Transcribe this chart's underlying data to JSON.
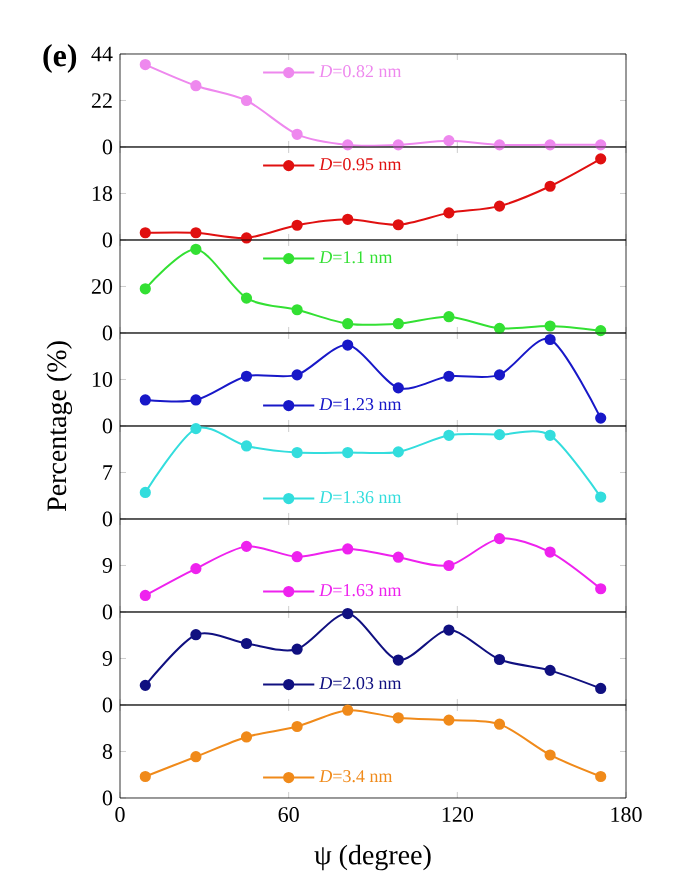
{
  "chart_data": [
    {
      "type": "line",
      "x": [
        9,
        27,
        45,
        63,
        81,
        99,
        117,
        135,
        153,
        171
      ],
      "xlim": [
        0,
        180
      ],
      "xticks": [
        0,
        60,
        120,
        180
      ],
      "ylim": [
        0,
        44
      ],
      "yticks": [
        0,
        22,
        44
      ],
      "tick_labels": "y",
      "marker": "circle",
      "line_style": "solid",
      "legend": "top",
      "grid": false,
      "annotations": [
        "(e)"
      ],
      "series": [
        {
          "name": "*D*=0.82 nm",
          "color": "#ee88ee",
          "values": [
            39,
            29,
            22,
            6,
            1,
            1,
            3,
            1,
            1,
            1
          ]
        }
      ]
    },
    {
      "type": "line",
      "x": [
        9,
        27,
        45,
        63,
        81,
        99,
        117,
        135,
        153,
        171
      ],
      "xlim": [
        0,
        180
      ],
      "xticks": [
        0,
        60,
        120,
        180
      ],
      "ylim": [
        0,
        36
      ],
      "yticks": [
        0,
        18
      ],
      "tick_labels": "y",
      "marker": "circle",
      "line_style": "solid",
      "legend": "top",
      "grid": false,
      "series": [
        {
          "name": "*D*=0.95 nm",
          "color": "#e01010",
          "values": [
            2.8,
            2.8,
            0.8,
            5.7,
            8,
            5.9,
            10.5,
            13.1,
            20.8,
            31.4
          ]
        }
      ]
    },
    {
      "type": "line",
      "x": [
        9,
        27,
        45,
        63,
        81,
        99,
        117,
        135,
        153,
        171
      ],
      "xlim": [
        0,
        180
      ],
      "xticks": [
        0,
        60,
        120,
        180
      ],
      "ylim": [
        0,
        40
      ],
      "yticks": [
        0,
        20
      ],
      "tick_labels": "y",
      "marker": "circle",
      "line_style": "solid",
      "legend": "top",
      "grid": false,
      "series": [
        {
          "name": "*D*=1.1 nm",
          "color": "#33e033",
          "values": [
            19,
            36,
            15,
            10,
            4,
            4,
            7,
            2,
            3,
            1
          ]
        }
      ]
    },
    {
      "type": "line",
      "x": [
        9,
        27,
        45,
        63,
        81,
        99,
        117,
        135,
        153,
        171
      ],
      "xlim": [
        0,
        180
      ],
      "xticks": [
        0,
        60,
        120,
        180
      ],
      "ylim": [
        0,
        20
      ],
      "yticks": [
        0,
        10
      ],
      "tick_labels": "y",
      "marker": "circle",
      "line_style": "solid",
      "legend": "bottom",
      "grid": false,
      "ylabel": "Percentage (%)",
      "series": [
        {
          "name": "*D*=1.23 nm",
          "color": "#1818c8",
          "values": [
            5.6,
            5.6,
            10.7,
            11,
            17.4,
            8.2,
            10.7,
            11,
            18.6,
            1.7
          ]
        }
      ]
    },
    {
      "type": "line",
      "x": [
        9,
        27,
        45,
        63,
        81,
        99,
        117,
        135,
        153,
        171
      ],
      "xlim": [
        0,
        180
      ],
      "xticks": [
        0,
        60,
        120,
        180
      ],
      "ylim": [
        0,
        14
      ],
      "yticks": [
        0,
        7
      ],
      "tick_labels": "y",
      "marker": "circle",
      "line_style": "solid",
      "legend": "bottom",
      "grid": false,
      "series": [
        {
          "name": "*D*=1.36 nm",
          "color": "#33dddd",
          "values": [
            4,
            13.6,
            11,
            10,
            10,
            10.1,
            12.6,
            12.7,
            12.6,
            3.3
          ]
        }
      ]
    },
    {
      "type": "line",
      "x": [
        9,
        27,
        45,
        63,
        81,
        99,
        117,
        135,
        153,
        171
      ],
      "xlim": [
        0,
        180
      ],
      "xticks": [
        0,
        60,
        120,
        180
      ],
      "ylim": [
        0,
        18
      ],
      "yticks": [
        0,
        9
      ],
      "tick_labels": "y",
      "marker": "circle",
      "line_style": "solid",
      "legend": "bottom",
      "grid": false,
      "series": [
        {
          "name": "*D*=1.63 nm",
          "color": "#ee22ee",
          "values": [
            3.2,
            8.4,
            12.7,
            10.7,
            12.2,
            10.6,
            9,
            14.2,
            11.6,
            4.5
          ]
        }
      ]
    },
    {
      "type": "line",
      "x": [
        9,
        27,
        45,
        63,
        81,
        99,
        117,
        135,
        153,
        171
      ],
      "xlim": [
        0,
        180
      ],
      "xticks": [
        0,
        60,
        120,
        180
      ],
      "ylim": [
        0,
        18
      ],
      "yticks": [
        0,
        9
      ],
      "tick_labels": "y",
      "marker": "circle",
      "line_style": "solid",
      "legend": "bottom",
      "grid": false,
      "series": [
        {
          "name": "*D*=2.03 nm",
          "color": "#101080",
          "values": [
            3.8,
            13.6,
            11.9,
            10.8,
            17.7,
            8.7,
            14.5,
            8.8,
            6.7,
            3.2
          ]
        }
      ]
    },
    {
      "type": "line",
      "x": [
        9,
        27,
        45,
        63,
        81,
        99,
        117,
        135,
        153,
        171
      ],
      "xlim": [
        0,
        180
      ],
      "xticks": [
        0,
        60,
        120,
        180
      ],
      "ylim": [
        0,
        16
      ],
      "yticks": [
        0,
        8
      ],
      "marker": "circle",
      "line_style": "solid",
      "legend": "bottom",
      "grid": false,
      "xlabel": "ψ (degree)",
      "series": [
        {
          "name": "*D*=3.4 nm",
          "color": "#f08a1a",
          "values": [
            3.7,
            7.1,
            10.5,
            12.3,
            15.1,
            13.8,
            13.4,
            12.7,
            7.4,
            3.7
          ]
        }
      ]
    }
  ]
}
